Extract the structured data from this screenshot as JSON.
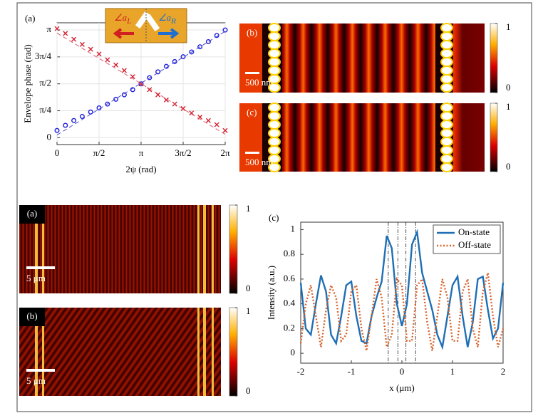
{
  "chart_data": [
    {
      "type": "scatter",
      "panel_label": "(a)",
      "x_label": "2ψ (rad)",
      "y_label": "Envelope phase (rad)",
      "inset": {
        "left": {
          "symbol": "∠a",
          "subscript": "L"
        },
        "right": {
          "symbol": "∠a",
          "subscript": "R"
        }
      },
      "x": [
        0,
        0.3142,
        0.6283,
        0.9425,
        1.2566,
        1.5708,
        1.885,
        2.1991,
        2.5133,
        2.8274,
        3.1416,
        3.4558,
        3.7699,
        4.0841,
        4.3982,
        4.7124,
        5.0265,
        5.3407,
        5.6549,
        5.969,
        6.2832
      ],
      "series": [
        {
          "color": "#1f1fe0",
          "marker": "circle",
          "values": [
            0.21,
            0.36,
            0.5,
            0.62,
            0.75,
            0.87,
            0.98,
            1.12,
            1.25,
            1.4,
            1.57,
            1.75,
            1.92,
            2.08,
            2.22,
            2.36,
            2.5,
            2.65,
            2.8,
            2.98,
            3.14
          ]
        },
        {
          "color": "#d21f2f",
          "marker": "cross",
          "values": [
            3.18,
            3.04,
            2.87,
            2.72,
            2.58,
            2.44,
            2.27,
            2.12,
            1.96,
            1.78,
            1.57,
            1.4,
            1.25,
            1.1,
            0.98,
            0.85,
            0.72,
            0.6,
            0.5,
            0.38,
            0.21
          ]
        },
        {
          "color": "#4a4ad0",
          "style": "dashed",
          "x": [
            0,
            6.2832
          ],
          "values": [
            0.08,
            3.1
          ]
        },
        {
          "color": "#e05a6a",
          "style": "dashed",
          "x": [
            0,
            6.2832
          ],
          "values": [
            3.05,
            0.1
          ]
        }
      ],
      "xlim": [
        0,
        6.2832
      ],
      "ylim": [
        -0.2,
        3.35
      ],
      "grid": true,
      "xticks": [
        0,
        {
          "value": 1.5708,
          "label": "π/2"
        },
        {
          "value": 3.1416,
          "label": "π"
        },
        {
          "value": 4.7124,
          "label": "3π/2"
        },
        {
          "value": 6.2832,
          "label": "2π"
        }
      ],
      "yticks": [
        0,
        {
          "value": 0.7854,
          "label": "π/4"
        },
        {
          "value": 1.5708,
          "label": "π/2"
        },
        {
          "value": 2.3562,
          "label": "3π/4"
        },
        {
          "value": 3.1416,
          "label": "π"
        }
      ]
    },
    {
      "type": "line",
      "panel_label": "(c)",
      "x_label": "x (μm)",
      "y_label": "Intensity (a.u.)",
      "x": [
        -2,
        -1.9,
        -1.8,
        -1.7,
        -1.6,
        -1.5,
        -1.4,
        -1.3,
        -1.2,
        -1.1,
        -1,
        -0.9,
        -0.8,
        -0.7,
        -0.6,
        -0.5,
        -0.4,
        -0.3,
        -0.2,
        -0.1,
        0,
        0.1,
        0.2,
        0.3,
        0.4,
        0.5,
        0.6,
        0.7,
        0.8,
        0.9,
        1,
        1.1,
        1.2,
        1.3,
        1.4,
        1.5,
        1.6,
        1.7,
        1.8,
        1.9,
        2
      ],
      "series": [
        {
          "name": "On-state",
          "color": "#1f6fb4",
          "style": "solid",
          "values": [
            0.57,
            0.2,
            0.15,
            0.4,
            0.63,
            0.5,
            0.15,
            0.08,
            0.3,
            0.55,
            0.58,
            0.3,
            0.1,
            0.08,
            0.3,
            0.45,
            0.58,
            0.95,
            0.85,
            0.4,
            0.22,
            0.4,
            0.88,
            0.98,
            0.65,
            0.5,
            0.35,
            0.15,
            0.05,
            0.3,
            0.55,
            0.62,
            0.3,
            0.05,
            0.25,
            0.6,
            0.62,
            0.35,
            0.12,
            0.2,
            0.57
          ]
        },
        {
          "name": "Off-state",
          "color": "#d9632b",
          "style": "dotted",
          "values": [
            0.08,
            0.4,
            0.55,
            0.3,
            0.05,
            0.35,
            0.55,
            0.45,
            0.1,
            0.15,
            0.5,
            0.55,
            0.2,
            0.02,
            0.3,
            0.6,
            0.45,
            0.05,
            0.15,
            0.6,
            0.55,
            0.1,
            0.1,
            0.55,
            0.6,
            0.25,
            0.02,
            0.3,
            0.6,
            0.45,
            0.1,
            0.1,
            0.5,
            0.6,
            0.2,
            0.05,
            0.5,
            0.65,
            0.3,
            0.05,
            0.2
          ]
        }
      ],
      "reference_lines": [
        -0.27,
        -0.08,
        0.08,
        0.27
      ],
      "xlim": [
        -2,
        2
      ],
      "ylim": [
        -0.08,
        1.06
      ],
      "grid": false,
      "legend": "upper right",
      "xticks": [
        -2,
        -1,
        0,
        1,
        2
      ],
      "yticks": [
        0,
        0.2,
        0.4,
        0.6,
        0.8,
        1
      ]
    }
  ],
  "images": [
    {
      "panel_label": "(b)",
      "scale_bar": "500 nm",
      "colorbar_lim": [
        0,
        1
      ],
      "colorbar_ticks": [
        0,
        1
      ]
    },
    {
      "panel_label": "(c)",
      "scale_bar": "500 nm",
      "colorbar_lim": [
        0,
        1
      ],
      "colorbar_ticks": [
        0,
        1
      ]
    },
    {
      "panel_label": "(a)",
      "scale_bar": "5 μm",
      "colorbar_lim": [
        0,
        1
      ],
      "colorbar_ticks": [
        0,
        1
      ]
    },
    {
      "panel_label": "(b)",
      "scale_bar": "5 μm",
      "colorbar_lim": [
        0,
        1
      ],
      "colorbar_ticks": [
        0,
        1
      ]
    }
  ]
}
